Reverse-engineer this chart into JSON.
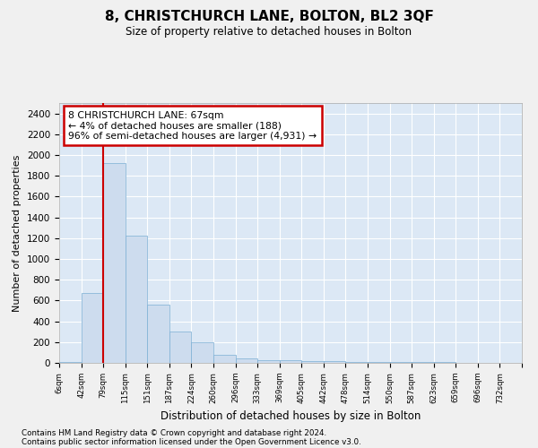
{
  "title": "8, CHRISTCHURCH LANE, BOLTON, BL2 3QF",
  "subtitle": "Size of property relative to detached houses in Bolton",
  "xlabel": "Distribution of detached houses by size in Bolton",
  "ylabel": "Number of detached properties",
  "bin_labels": [
    "6sqm",
    "42sqm",
    "79sqm",
    "115sqm",
    "151sqm",
    "187sqm",
    "224sqm",
    "260sqm",
    "296sqm",
    "333sqm",
    "369sqm",
    "405sqm",
    "442sqm",
    "478sqm",
    "514sqm",
    "550sqm",
    "587sqm",
    "623sqm",
    "659sqm",
    "696sqm",
    "732sqm"
  ],
  "bar_heights": [
    5,
    670,
    1920,
    1220,
    560,
    305,
    200,
    75,
    40,
    30,
    25,
    20,
    15,
    10,
    8,
    5,
    5,
    5,
    3,
    3,
    2
  ],
  "bar_color": "#cddcee",
  "bar_edge_color": "#7bafd4",
  "ylim": [
    0,
    2500
  ],
  "yticks": [
    0,
    200,
    400,
    600,
    800,
    1000,
    1200,
    1400,
    1600,
    1800,
    2000,
    2200,
    2400
  ],
  "red_line_color": "#cc0000",
  "annotation_text": "8 CHRISTCHURCH LANE: 67sqm\n← 4% of detached houses are smaller (188)\n96% of semi-detached houses are larger (4,931) →",
  "annotation_box_color": "#ffffff",
  "annotation_box_edge": "#cc0000",
  "footer_line1": "Contains HM Land Registry data © Crown copyright and database right 2024.",
  "footer_line2": "Contains public sector information licensed under the Open Government Licence v3.0.",
  "plot_bg_color": "#dce8f5",
  "fig_bg_color": "#f0f0f0",
  "grid_color": "#ffffff"
}
